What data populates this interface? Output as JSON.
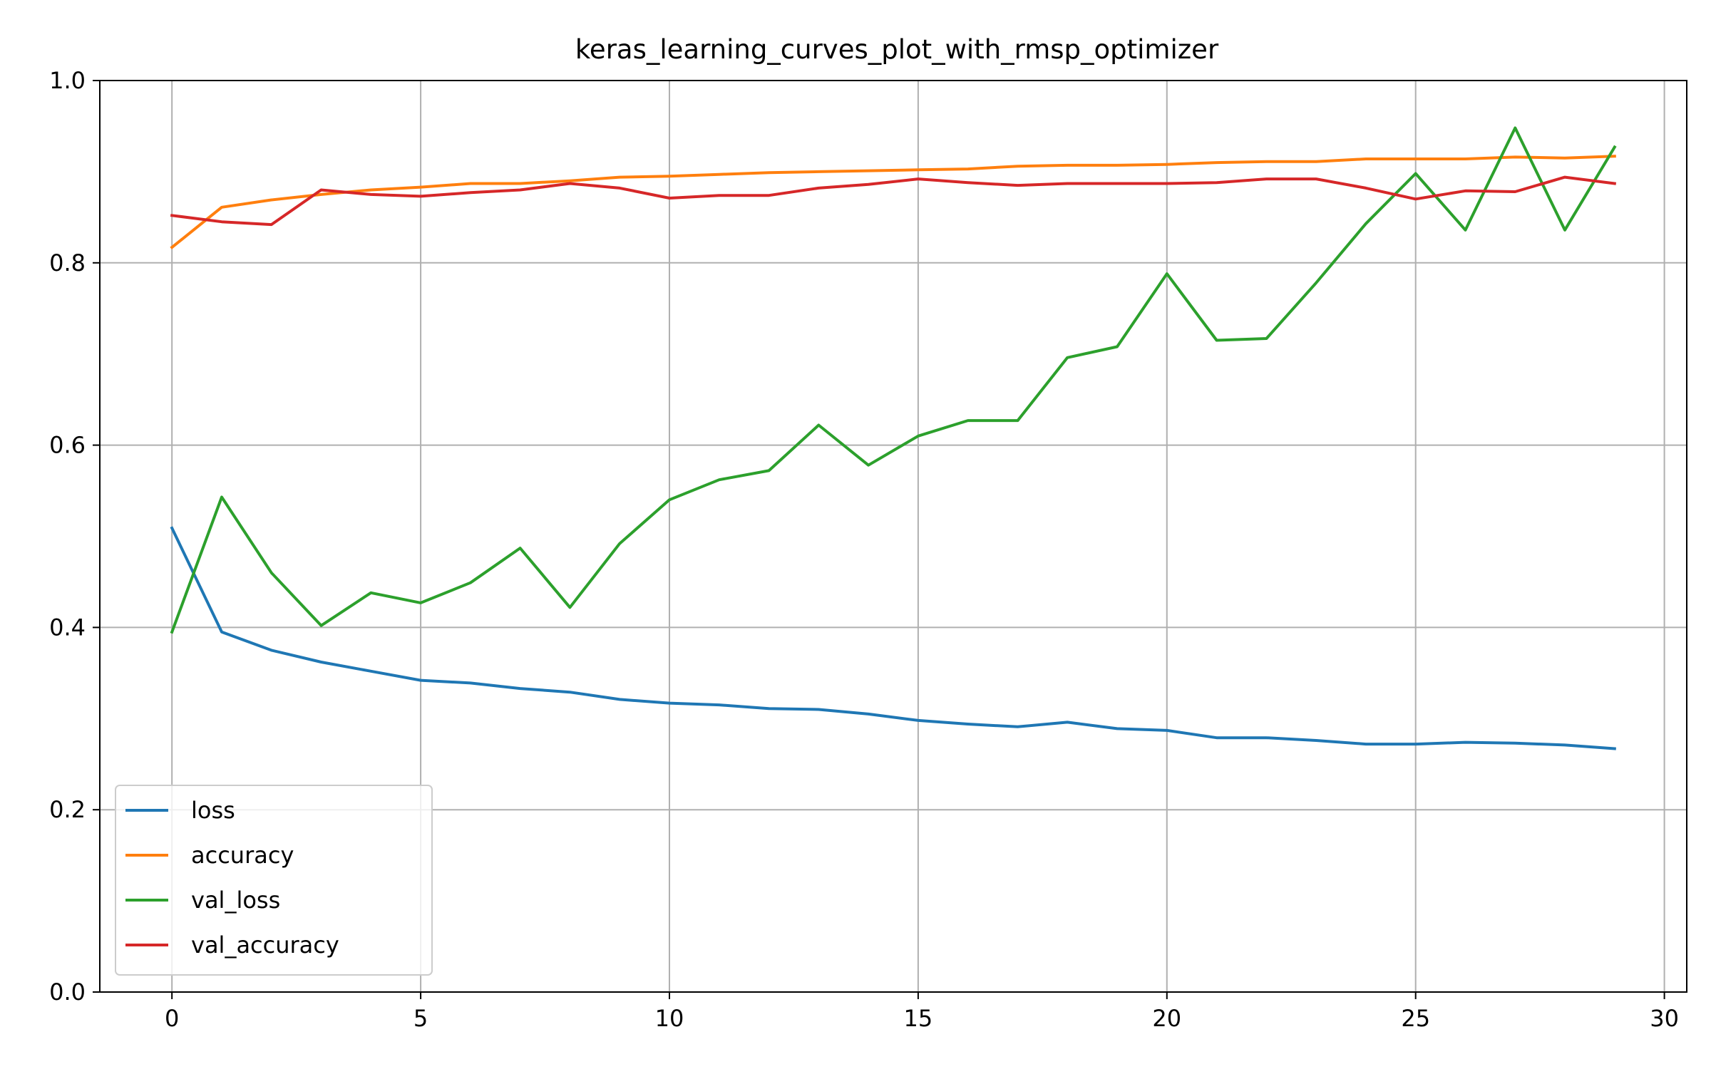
{
  "chart_data": {
    "type": "line",
    "title": "keras_learning_curves_plot_with_rmsp_optimizer",
    "xlabel": "",
    "ylabel": "",
    "xlim": [
      -1.45,
      30.45
    ],
    "ylim": [
      0.0,
      1.0
    ],
    "xticks": [
      0,
      5,
      10,
      15,
      20,
      25,
      30
    ],
    "yticks": [
      0.0,
      0.2,
      0.4,
      0.6,
      0.8,
      1.0
    ],
    "xtick_labels": [
      "0",
      "5",
      "10",
      "15",
      "20",
      "25",
      "30"
    ],
    "ytick_labels": [
      "0.0",
      "0.2",
      "0.4",
      "0.6",
      "0.8",
      "1.0"
    ],
    "grid": true,
    "legend_position": "lower-left",
    "x": [
      0,
      1,
      2,
      3,
      4,
      5,
      6,
      7,
      8,
      9,
      10,
      11,
      12,
      13,
      14,
      15,
      16,
      17,
      18,
      19,
      20,
      21,
      22,
      23,
      24,
      25,
      26,
      27,
      28,
      29
    ],
    "series": [
      {
        "name": "loss",
        "color": "#1f77b4",
        "values": [
          0.509,
          0.395,
          0.375,
          0.362,
          0.352,
          0.342,
          0.339,
          0.333,
          0.329,
          0.321,
          0.317,
          0.315,
          0.311,
          0.31,
          0.305,
          0.298,
          0.294,
          0.291,
          0.296,
          0.289,
          0.287,
          0.279,
          0.279,
          0.276,
          0.272,
          0.272,
          0.274,
          0.273,
          0.271,
          0.267
        ]
      },
      {
        "name": "accuracy",
        "color": "#ff7f0e",
        "values": [
          0.817,
          0.861,
          0.869,
          0.875,
          0.88,
          0.883,
          0.887,
          0.887,
          0.89,
          0.894,
          0.895,
          0.897,
          0.899,
          0.9,
          0.901,
          0.902,
          0.903,
          0.906,
          0.907,
          0.907,
          0.908,
          0.91,
          0.911,
          0.911,
          0.914,
          0.914,
          0.914,
          0.916,
          0.915,
          0.917
        ]
      },
      {
        "name": "val_loss",
        "color": "#2ca02c",
        "values": [
          0.395,
          0.543,
          0.46,
          0.402,
          0.438,
          0.427,
          0.449,
          0.487,
          0.422,
          0.492,
          0.54,
          0.562,
          0.572,
          0.622,
          0.578,
          0.61,
          0.627,
          0.627,
          0.696,
          0.708,
          0.788,
          0.715,
          0.717,
          0.778,
          0.843,
          0.898,
          0.836,
          0.948,
          0.836,
          0.927
        ]
      },
      {
        "name": "val_accuracy",
        "color": "#d62728",
        "values": [
          0.852,
          0.845,
          0.842,
          0.88,
          0.875,
          0.873,
          0.877,
          0.88,
          0.887,
          0.882,
          0.871,
          0.874,
          0.874,
          0.882,
          0.886,
          0.892,
          0.888,
          0.885,
          0.887,
          0.887,
          0.887,
          0.888,
          0.892,
          0.892,
          0.882,
          0.87,
          0.879,
          0.878,
          0.894,
          0.887
        ]
      }
    ]
  }
}
